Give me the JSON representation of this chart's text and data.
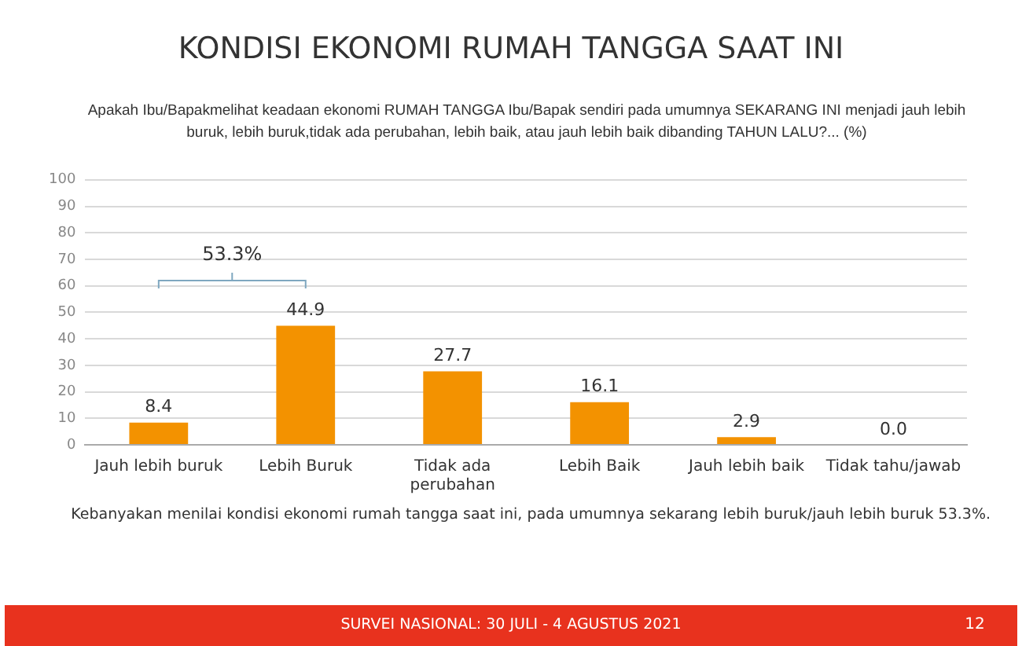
{
  "chart_data": {
    "type": "bar",
    "title": "KONDISI EKONOMI RUMAH TANGGA SAAT INI",
    "subtitle": "Apakah Ibu/Bapakmelihat keadaan ekonomi RUMAH TANGGA Ibu/Bapak sendiri pada umumnya SEKARANG INI menjadi jauh lebih buruk, lebih buruk,tidak ada perubahan, lebih baik, atau jauh lebih baik dibanding TAHUN LALU?... (%)",
    "categories": [
      "Jauh lebih buruk",
      "Lebih Buruk",
      "Tidak ada perubahan",
      "Lebih Baik",
      "Jauh lebih baik",
      "Tidak tahu/jawab"
    ],
    "values": [
      8.4,
      44.9,
      27.7,
      16.1,
      2.9,
      0.0
    ],
    "color": "#f39200",
    "ylim": [
      0,
      100
    ],
    "yticks": [
      0,
      10,
      20,
      30,
      40,
      50,
      60,
      70,
      80,
      90,
      100
    ],
    "value_labels": [
      "8.4",
      "44.9",
      "27.7",
      "16.1",
      "2.9",
      "0.0"
    ],
    "grid": "y",
    "annotations": [
      "53.3%",
      "Kebanyakan menilai kondisi ekonomi rumah tangga saat ini, pada umumnya sekarang lebih buruk/jauh lebih buruk 53.3%.",
      "SURVEI NASIONAL: 30 JULI - 4 AGUSTUS 2021",
      "12"
    ]
  }
}
